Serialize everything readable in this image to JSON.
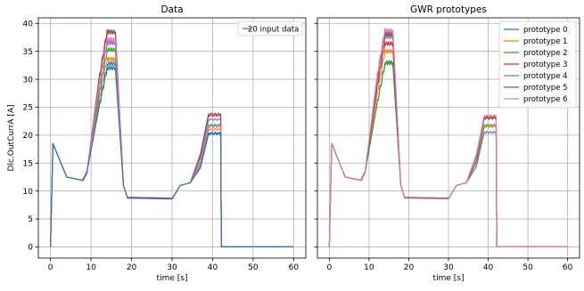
{
  "chart_data": [
    {
      "type": "line",
      "title": "Data",
      "xlabel": "time [s]",
      "ylabel": "Dlc.OutCurrA [A]",
      "xlim": [
        -3,
        63
      ],
      "ylim": [
        -2,
        41
      ],
      "xticks": [
        0,
        10,
        20,
        30,
        40,
        50,
        60
      ],
      "yticks": [
        0,
        5,
        10,
        15,
        20,
        25,
        30,
        35,
        40
      ],
      "grid": true,
      "legend": {
        "placement": "top-right",
        "entries": [
          "20 input data"
        ]
      },
      "series": [
        {
          "name": "20 input data",
          "color": "#1f77b4",
          "peak": 32.5,
          "plateau": 20.2,
          "shift": 0.3
        },
        {
          "color": "#ff7f0e",
          "peak": 33.8,
          "plateau": 21.0,
          "shift": -0.2
        },
        {
          "color": "#2ca02c",
          "peak": 35.2,
          "plateau": 21.8,
          "shift": 0.1
        },
        {
          "color": "#d62728",
          "peak": 38.8,
          "plateau": 23.5,
          "shift": -0.3
        },
        {
          "color": "#9467bd",
          "peak": 36.5,
          "plateau": 22.8,
          "shift": 0.0
        },
        {
          "color": "#8c564b",
          "peak": 38.2,
          "plateau": 23.8,
          "shift": 0.2
        },
        {
          "color": "#e377c2",
          "peak": 37.2,
          "plateau": 21.5,
          "shift": -0.1
        },
        {
          "color": "#1f77b4",
          "peak": 32.0,
          "plateau": 20.4,
          "shift": 0.0
        }
      ]
    },
    {
      "type": "line",
      "title": "GWR prototypes",
      "xlabel": "time [s]",
      "ylabel": "",
      "xlim": [
        -3,
        63
      ],
      "ylim": [
        -2,
        41
      ],
      "xticks": [
        0,
        10,
        20,
        30,
        40,
        50,
        60
      ],
      "yticks": [
        0,
        5,
        10,
        15,
        20,
        25,
        30,
        35,
        40
      ],
      "grid": true,
      "legend": {
        "placement": "top-right"
      },
      "series": [
        {
          "name": "prototype 0",
          "color": "#1f77b4",
          "peak": 32.8,
          "plateau": 20.5,
          "shift": 0.2
        },
        {
          "name": "prototype 1",
          "color": "#ff7f0e",
          "peak": 35.0,
          "plateau": 21.5,
          "shift": 0.0
        },
        {
          "name": "prototype 2",
          "color": "#2ca02c",
          "peak": 32.6,
          "plateau": 21.8,
          "shift": 0.3
        },
        {
          "name": "prototype 3",
          "color": "#d62728",
          "peak": 36.5,
          "plateau": 23.0,
          "shift": -0.1
        },
        {
          "name": "prototype 4",
          "color": "#9467bd",
          "peak": 37.5,
          "plateau": 20.5,
          "shift": 0.1
        },
        {
          "name": "prototype 5",
          "color": "#8c564b",
          "peak": 38.3,
          "plateau": 23.2,
          "shift": -0.2
        },
        {
          "name": "prototype 6",
          "color": "#e377c2",
          "peak": 39.0,
          "plateau": 23.5,
          "shift": -0.3
        }
      ]
    }
  ]
}
